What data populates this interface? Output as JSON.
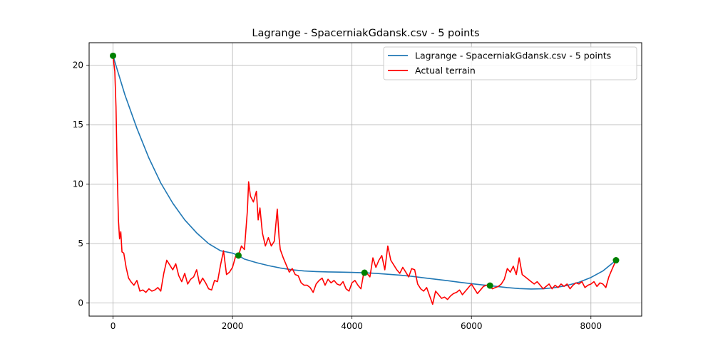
{
  "chart_data": {
    "type": "line",
    "title": "Lagrange - SpacerniakGdansk.csv - 5 points",
    "xlabel": "",
    "ylabel": "",
    "xlim": [
      -400,
      8850
    ],
    "ylim": [
      -1.1,
      21.9
    ],
    "xticks": [
      0,
      2000,
      4000,
      6000,
      8000
    ],
    "yticks": [
      0,
      5,
      10,
      15,
      20
    ],
    "grid": true,
    "legend_position": "upper right",
    "series": [
      {
        "name": "Lagrange - SpacerniakGdansk.csv - 5 points",
        "color": "#1f77b4",
        "x": [
          0,
          200,
          400,
          600,
          800,
          1000,
          1200,
          1400,
          1600,
          1800,
          2000,
          2100,
          2200,
          2400,
          2600,
          2800,
          3000,
          3200,
          3400,
          3600,
          3800,
          4000,
          4200,
          4400,
          4600,
          4800,
          5000,
          5200,
          5400,
          5600,
          5800,
          6000,
          6200,
          6300,
          6400,
          6600,
          6800,
          7000,
          7200,
          7400,
          7600,
          7800,
          8000,
          8200,
          8420
        ],
        "y": [
          20.8,
          17.5,
          14.7,
          12.2,
          10.1,
          8.4,
          7.0,
          5.9,
          5.0,
          4.4,
          4.2,
          4.0,
          3.7,
          3.4,
          3.15,
          2.95,
          2.8,
          2.7,
          2.65,
          2.62,
          2.6,
          2.58,
          2.55,
          2.5,
          2.42,
          2.35,
          2.25,
          2.12,
          2.0,
          1.88,
          1.75,
          1.63,
          1.52,
          1.47,
          1.41,
          1.3,
          1.22,
          1.18,
          1.2,
          1.3,
          1.48,
          1.75,
          2.15,
          2.7,
          3.6
        ]
      },
      {
        "name": "Actual terrain",
        "color": "#ff0000",
        "x": [
          0,
          30,
          50,
          70,
          90,
          110,
          130,
          150,
          180,
          220,
          260,
          300,
          350,
          400,
          450,
          500,
          550,
          600,
          650,
          700,
          750,
          800,
          850,
          900,
          950,
          1000,
          1050,
          1100,
          1150,
          1200,
          1250,
          1300,
          1350,
          1400,
          1450,
          1500,
          1550,
          1600,
          1650,
          1700,
          1750,
          1800,
          1850,
          1900,
          1950,
          2000,
          2050,
          2100,
          2150,
          2200,
          2250,
          2270,
          2300,
          2350,
          2400,
          2430,
          2460,
          2500,
          2550,
          2600,
          2650,
          2700,
          2750,
          2780,
          2800,
          2850,
          2900,
          2950,
          3000,
          3050,
          3100,
          3150,
          3200,
          3250,
          3300,
          3350,
          3400,
          3450,
          3500,
          3550,
          3600,
          3650,
          3700,
          3750,
          3800,
          3850,
          3900,
          3950,
          4000,
          4050,
          4100,
          4150,
          4200,
          4250,
          4300,
          4350,
          4400,
          4450,
          4500,
          4550,
          4600,
          4650,
          4700,
          4750,
          4800,
          4850,
          4900,
          4950,
          5000,
          5050,
          5100,
          5150,
          5200,
          5250,
          5300,
          5350,
          5400,
          5450,
          5500,
          5550,
          5600,
          5650,
          5700,
          5750,
          5800,
          5850,
          5900,
          5950,
          6000,
          6050,
          6100,
          6150,
          6200,
          6250,
          6300,
          6350,
          6400,
          6450,
          6500,
          6550,
          6600,
          6650,
          6700,
          6750,
          6800,
          6850,
          6900,
          6950,
          7000,
          7050,
          7100,
          7150,
          7200,
          7250,
          7300,
          7350,
          7400,
          7450,
          7500,
          7550,
          7600,
          7650,
          7700,
          7750,
          7800,
          7850,
          7900,
          7950,
          8000,
          8050,
          8100,
          8150,
          8200,
          8250,
          8300,
          8350,
          8420
        ],
        "y": [
          20.8,
          19.5,
          16.5,
          11.0,
          7.0,
          5.4,
          6.0,
          4.3,
          4.2,
          3.0,
          2.1,
          1.8,
          1.5,
          1.9,
          1.0,
          1.1,
          0.9,
          1.2,
          1.0,
          1.1,
          1.3,
          1.0,
          2.5,
          3.6,
          3.2,
          2.8,
          3.3,
          2.3,
          1.8,
          2.5,
          1.6,
          2.0,
          2.2,
          2.8,
          1.6,
          2.1,
          1.7,
          1.2,
          1.1,
          1.9,
          1.8,
          3.2,
          4.4,
          2.4,
          2.6,
          3.0,
          3.9,
          4.0,
          4.8,
          4.5,
          7.8,
          10.2,
          9.0,
          8.5,
          9.4,
          7.0,
          8.0,
          5.9,
          4.8,
          5.5,
          4.8,
          5.2,
          7.9,
          5.5,
          4.5,
          3.8,
          3.2,
          2.6,
          2.9,
          2.4,
          2.3,
          1.7,
          1.5,
          1.5,
          1.3,
          0.9,
          1.6,
          1.9,
          2.1,
          1.5,
          2.0,
          1.7,
          1.9,
          1.6,
          1.5,
          1.8,
          1.2,
          1.0,
          1.7,
          1.9,
          1.5,
          1.2,
          2.6,
          2.5,
          2.2,
          3.8,
          3.0,
          3.6,
          4.0,
          2.8,
          4.8,
          3.6,
          3.2,
          2.8,
          2.5,
          3.0,
          2.6,
          2.2,
          2.9,
          2.8,
          1.6,
          1.2,
          1.0,
          1.3,
          0.6,
          -0.1,
          1.0,
          0.7,
          0.4,
          0.5,
          0.3,
          0.6,
          0.8,
          0.9,
          1.1,
          0.7,
          1.0,
          1.3,
          1.6,
          1.2,
          0.8,
          1.1,
          1.4,
          1.5,
          1.5,
          1.2,
          1.3,
          1.4,
          1.6,
          2.0,
          2.9,
          2.6,
          3.1,
          2.4,
          3.8,
          2.4,
          2.2,
          2.0,
          1.8,
          1.6,
          1.8,
          1.5,
          1.2,
          1.4,
          1.6,
          1.2,
          1.5,
          1.3,
          1.6,
          1.4,
          1.6,
          1.2,
          1.5,
          1.7,
          1.6,
          1.8,
          1.3,
          1.5,
          1.6,
          1.8,
          1.4,
          1.7,
          1.6,
          1.3,
          2.2,
          2.8,
          3.6
        ]
      }
    ],
    "markers": {
      "color": "#008000",
      "x": [
        0,
        2100,
        4210,
        6310,
        8420
      ],
      "y": [
        20.8,
        4.0,
        2.55,
        1.47,
        3.6
      ]
    }
  }
}
